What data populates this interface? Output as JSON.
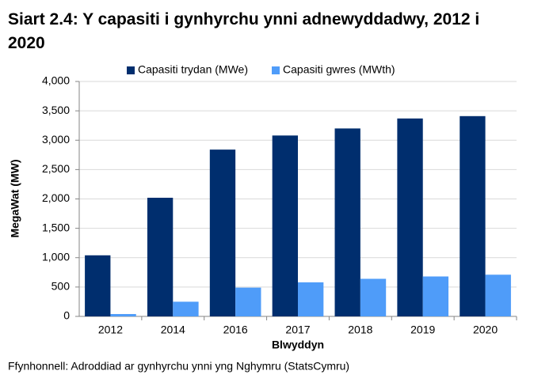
{
  "chart_data": {
    "type": "bar",
    "title": "Siart 2.4: Y capasiti i gynhyrchu ynni adnewyddadwy, 2012 i 2020",
    "x_label": "Blwyddyn",
    "y_label": "MegaWat (MW)",
    "source": "Ffynhonnell: Adroddiad ar gynhyrchu ynni yng Nghymru (StatsCymru)",
    "categories": [
      "2012",
      "2014",
      "2016",
      "2017",
      "2018",
      "2019",
      "2020"
    ],
    "series": [
      {
        "name": "Capasiti trydan (MWe)",
        "color": "#002e6e",
        "values": [
          1040,
          2020,
          2840,
          3080,
          3200,
          3370,
          3410
        ]
      },
      {
        "name": "Capasiti gwres (MWth)",
        "color": "#4f9cf9",
        "values": [
          40,
          250,
          490,
          580,
          640,
          680,
          710
        ]
      }
    ],
    "ylim": [
      0,
      4000
    ],
    "yticks": [
      0,
      500,
      {
        "value": 1000,
        "label": "1,000"
      },
      {
        "value": 1500,
        "label": "1,500"
      },
      {
        "value": 2000,
        "label": "2,000"
      },
      {
        "value": 2500,
        "label": "2,500"
      },
      {
        "value": 3000,
        "label": "3,000"
      },
      {
        "value": 3500,
        "label": "3,500"
      },
      {
        "value": 4000,
        "label": "4,000"
      }
    ],
    "grid": true,
    "legend": "top"
  }
}
